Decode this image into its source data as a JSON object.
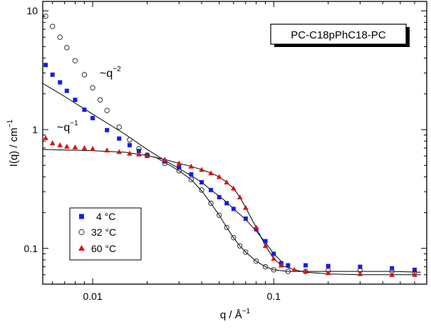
{
  "chart_data": {
    "type": "scatter",
    "title": "PC-C18pPhC18-PC",
    "xlabel": "q / Å",
    "xlabel_sup": "−1",
    "ylabel": "I(q) / cm",
    "ylabel_sup": "−1",
    "xscale": "log",
    "yscale": "log",
    "xlim": [
      0.0053,
      0.7
    ],
    "ylim": [
      0.05,
      12
    ],
    "x_ticks": [
      {
        "value": 0.01,
        "label": "0.01"
      },
      {
        "value": 0.1,
        "label": "0.1"
      }
    ],
    "y_ticks": [
      {
        "value": 0.1,
        "label": "0.1"
      },
      {
        "value": 1,
        "label": "1"
      },
      {
        "value": 10,
        "label": "10"
      }
    ],
    "legend": {
      "position": "bottom-left"
    },
    "annotations": [
      {
        "base": "~q",
        "exp": "−2"
      },
      {
        "base": "~q",
        "exp": "−1"
      }
    ],
    "series": [
      {
        "name": "4 °C",
        "marker": "square",
        "color": "#1a1ae6",
        "points": [
          [
            0.0055,
            3.5
          ],
          [
            0.006,
            2.9
          ],
          [
            0.0066,
            2.5
          ],
          [
            0.0072,
            2.12
          ],
          [
            0.008,
            1.78
          ],
          [
            0.009,
            1.47
          ],
          [
            0.01,
            1.25
          ],
          [
            0.012,
            0.99
          ],
          [
            0.014,
            0.84
          ],
          [
            0.016,
            0.74
          ],
          [
            0.018,
            0.66
          ],
          [
            0.02,
            0.61
          ],
          [
            0.025,
            0.54
          ],
          [
            0.03,
            0.48
          ],
          [
            0.035,
            0.42
          ],
          [
            0.04,
            0.36
          ],
          [
            0.045,
            0.31
          ],
          [
            0.05,
            0.27
          ],
          [
            0.055,
            0.24
          ],
          [
            0.06,
            0.215
          ],
          [
            0.07,
            0.178
          ],
          [
            0.08,
            0.145
          ],
          [
            0.09,
            0.115
          ],
          [
            0.1,
            0.09
          ],
          [
            0.11,
            0.075
          ],
          [
            0.12,
            0.072
          ],
          [
            0.15,
            0.072
          ],
          [
            0.2,
            0.071
          ],
          [
            0.3,
            0.07
          ],
          [
            0.45,
            0.068
          ],
          [
            0.6,
            0.066
          ]
        ]
      },
      {
        "name": "32 °C",
        "marker": "circle",
        "color": "#333333",
        "points": [
          [
            0.0055,
            9.0
          ],
          [
            0.006,
            7.4
          ],
          [
            0.0066,
            6.0
          ],
          [
            0.0072,
            4.9
          ],
          [
            0.008,
            3.8
          ],
          [
            0.009,
            2.9
          ],
          [
            0.01,
            2.25
          ],
          [
            0.011,
            1.78
          ],
          [
            0.012,
            1.45
          ],
          [
            0.014,
            1.05
          ],
          [
            0.016,
            0.82
          ],
          [
            0.018,
            0.69
          ],
          [
            0.02,
            0.61
          ],
          [
            0.025,
            0.52
          ],
          [
            0.03,
            0.45
          ],
          [
            0.035,
            0.38
          ],
          [
            0.04,
            0.31
          ],
          [
            0.045,
            0.24
          ],
          [
            0.05,
            0.19
          ],
          [
            0.055,
            0.15
          ],
          [
            0.06,
            0.123
          ],
          [
            0.065,
            0.105
          ],
          [
            0.07,
            0.093
          ],
          [
            0.08,
            0.078
          ],
          [
            0.09,
            0.07
          ],
          [
            0.1,
            0.066
          ],
          [
            0.12,
            0.064
          ],
          [
            0.15,
            0.064
          ],
          [
            0.2,
            0.065
          ],
          [
            0.3,
            0.065
          ],
          [
            0.45,
            0.064
          ],
          [
            0.6,
            0.063
          ]
        ]
      },
      {
        "name": "60 °C",
        "marker": "triangle",
        "color": "#dd1111",
        "points": [
          [
            0.0055,
            0.85
          ],
          [
            0.006,
            0.77
          ],
          [
            0.0066,
            0.74
          ],
          [
            0.0072,
            0.72
          ],
          [
            0.008,
            0.71
          ],
          [
            0.009,
            0.7
          ],
          [
            0.01,
            0.69
          ],
          [
            0.012,
            0.67
          ],
          [
            0.014,
            0.65
          ],
          [
            0.016,
            0.63
          ],
          [
            0.018,
            0.62
          ],
          [
            0.02,
            0.6
          ],
          [
            0.025,
            0.56
          ],
          [
            0.03,
            0.52
          ],
          [
            0.035,
            0.49
          ],
          [
            0.04,
            0.46
          ],
          [
            0.045,
            0.43
          ],
          [
            0.05,
            0.4
          ],
          [
            0.055,
            0.36
          ],
          [
            0.06,
            0.32
          ],
          [
            0.065,
            0.27
          ],
          [
            0.07,
            0.22
          ],
          [
            0.08,
            0.15
          ],
          [
            0.09,
            0.105
          ],
          [
            0.1,
            0.082
          ],
          [
            0.11,
            0.072
          ],
          [
            0.13,
            0.066
          ],
          [
            0.15,
            0.064
          ],
          [
            0.2,
            0.062
          ],
          [
            0.3,
            0.061
          ],
          [
            0.45,
            0.06
          ],
          [
            0.6,
            0.06
          ]
        ]
      }
    ],
    "fit_lines": [
      {
        "name": "fit 4 °C",
        "points": [
          [
            0.0053,
            2.45
          ],
          [
            0.007,
            1.9
          ],
          [
            0.01,
            1.35
          ],
          [
            0.015,
            0.92
          ],
          [
            0.02,
            0.68
          ],
          [
            0.025,
            0.55
          ],
          [
            0.03,
            0.47
          ],
          [
            0.035,
            0.41
          ],
          [
            0.04,
            0.36
          ],
          [
            0.045,
            0.31
          ],
          [
            0.05,
            0.275
          ],
          [
            0.055,
            0.245
          ],
          [
            0.06,
            0.215
          ],
          [
            0.07,
            0.175
          ],
          [
            0.08,
            0.14
          ],
          [
            0.09,
            0.112
          ],
          [
            0.1,
            0.09
          ],
          [
            0.11,
            0.078
          ]
        ]
      },
      {
        "name": "fit 32 °C",
        "points": [
          [
            0.022,
            0.59
          ],
          [
            0.025,
            0.53
          ],
          [
            0.03,
            0.45
          ],
          [
            0.035,
            0.38
          ],
          [
            0.04,
            0.305
          ],
          [
            0.045,
            0.24
          ],
          [
            0.05,
            0.19
          ],
          [
            0.055,
            0.15
          ],
          [
            0.06,
            0.123
          ],
          [
            0.065,
            0.105
          ],
          [
            0.07,
            0.093
          ],
          [
            0.08,
            0.078
          ],
          [
            0.09,
            0.07
          ],
          [
            0.1,
            0.066
          ],
          [
            0.12,
            0.064
          ],
          [
            0.15,
            0.064
          ],
          [
            0.2,
            0.064
          ],
          [
            0.3,
            0.064
          ],
          [
            0.45,
            0.064
          ],
          [
            0.65,
            0.063
          ]
        ]
      },
      {
        "name": "fit 60 °C",
        "points": [
          [
            0.0053,
            0.68
          ],
          [
            0.008,
            0.67
          ],
          [
            0.01,
            0.665
          ],
          [
            0.015,
            0.645
          ],
          [
            0.02,
            0.605
          ],
          [
            0.025,
            0.56
          ],
          [
            0.03,
            0.52
          ],
          [
            0.035,
            0.49
          ],
          [
            0.04,
            0.46
          ],
          [
            0.045,
            0.43
          ],
          [
            0.05,
            0.4
          ],
          [
            0.055,
            0.36
          ],
          [
            0.06,
            0.32
          ],
          [
            0.065,
            0.27
          ],
          [
            0.07,
            0.22
          ],
          [
            0.08,
            0.15
          ],
          [
            0.09,
            0.105
          ],
          [
            0.1,
            0.082
          ],
          [
            0.11,
            0.072
          ],
          [
            0.13,
            0.066
          ],
          [
            0.15,
            0.063
          ],
          [
            0.2,
            0.061
          ],
          [
            0.3,
            0.06
          ],
          [
            0.45,
            0.06
          ],
          [
            0.65,
            0.06
          ]
        ]
      }
    ]
  }
}
